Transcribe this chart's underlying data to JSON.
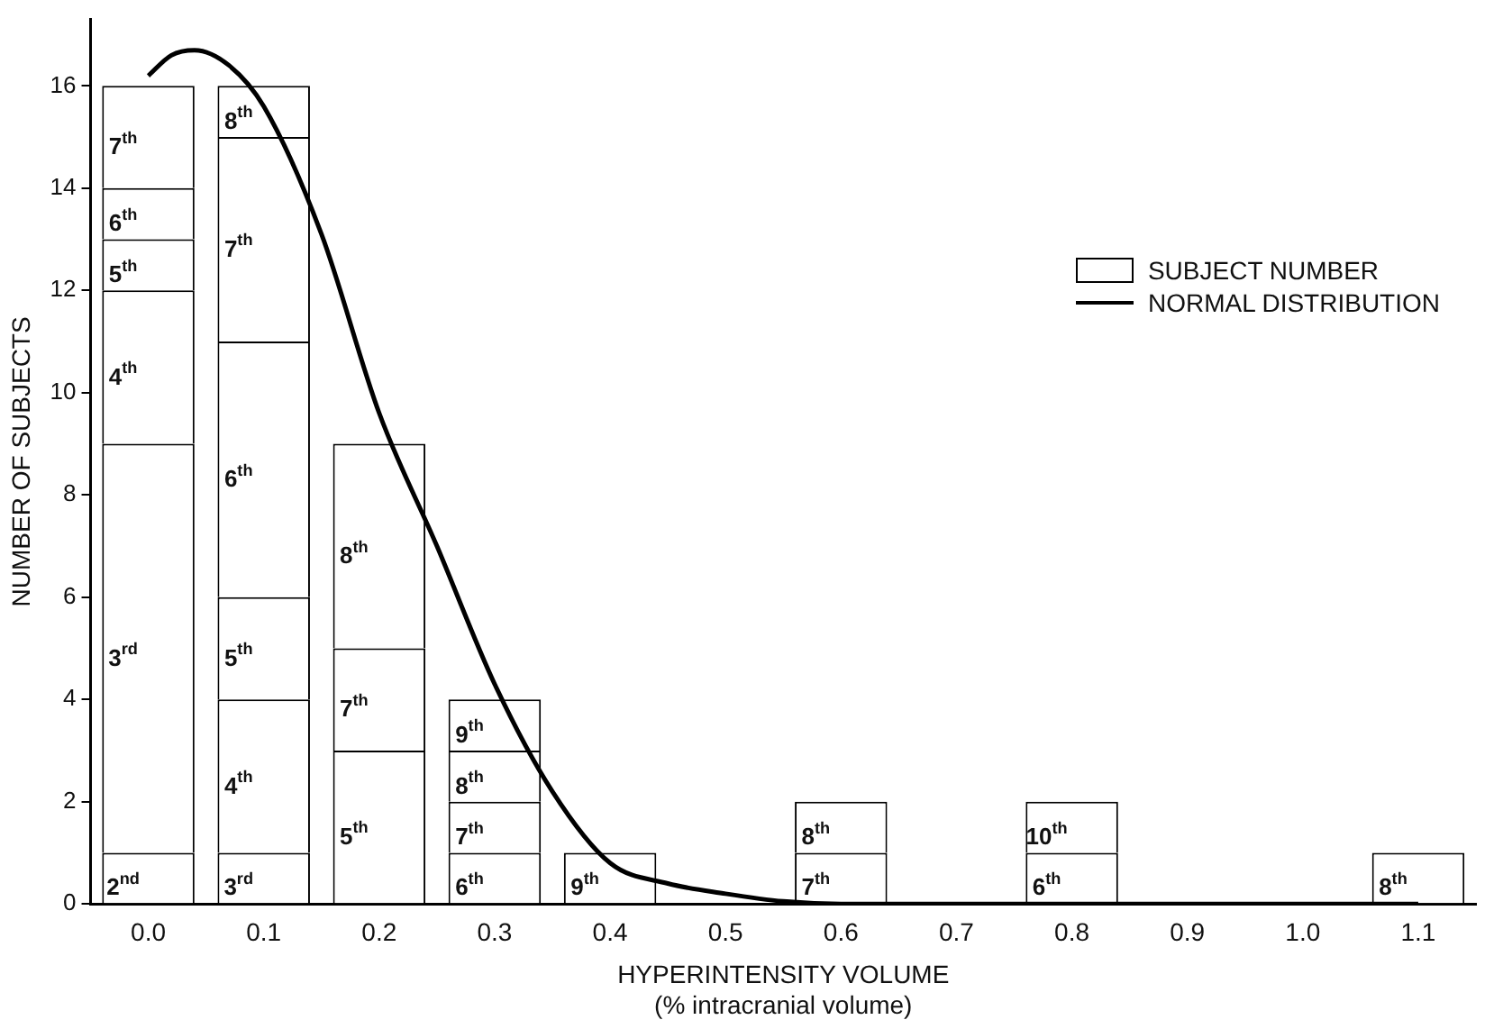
{
  "chart_data": {
    "type": "bar",
    "stacked": true,
    "xlabel": "HYPERINTENSITY VOLUME\n(% intracranial volume)",
    "ylabel": "NUMBER OF SUBJECTS",
    "x": [
      0,
      0.1,
      0.2,
      0.3,
      0.4,
      0.6,
      0.8,
      1.1
    ],
    "series": [
      {
        "name": "2$^{nd}$",
        "color": "#ffffff",
        "values": [
          1,
          null,
          null,
          null,
          null,
          null,
          null,
          null
        ]
      },
      {
        "name": "3$^{rd}$",
        "color": "#ffffff",
        "values": [
          8,
          1,
          null,
          null,
          null,
          null,
          null,
          null
        ]
      },
      {
        "name": "4$^{th}$",
        "color": "#ffffff",
        "values": [
          3,
          3,
          null,
          null,
          null,
          null,
          null,
          null
        ]
      },
      {
        "name": "5$^{th}$",
        "color": "#ffffff",
        "values": [
          1,
          2,
          3,
          null,
          null,
          null,
          null,
          null
        ]
      },
      {
        "name": "6$^{th}$",
        "color": "#ffffff",
        "values": [
          1,
          5,
          null,
          1,
          null,
          null,
          1,
          null
        ]
      },
      {
        "name": "7$^{th}$",
        "color": "#ffffff",
        "values": [
          2,
          4,
          2,
          1,
          null,
          1,
          null,
          null
        ]
      },
      {
        "name": "8$^{th}$",
        "color": "#ffffff",
        "values": [
          null,
          1,
          4,
          1,
          null,
          1,
          null,
          1
        ]
      },
      {
        "name": "9$^{th}$",
        "color": "#ffffff",
        "values": [
          null,
          null,
          null,
          1,
          1,
          null,
          null,
          null
        ]
      },
      {
        "name": "10$^{th}$",
        "color": "#ffffff",
        "values": [
          null,
          null,
          null,
          null,
          null,
          null,
          1,
          null
        ]
      },
      {
        "name": "NORMAL DISTRIBUTION",
        "type": "line",
        "color": "#000000",
        "x": [
          0,
          0.02,
          0.04,
          0.07,
          0.1,
          0.15,
          0.2,
          0.25,
          0.3,
          0.35,
          0.4,
          0.45,
          0.5,
          0.55,
          0.6,
          0.8,
          1.1
        ],
        "values": [
          16.2,
          16.6,
          16.7,
          16.4,
          15.6,
          13.1,
          9.6,
          7.0,
          4.3,
          2.2,
          0.8,
          0.4,
          0.2,
          0.05,
          0,
          0,
          0
        ]
      }
    ],
    "xlim": [
      -0.05,
      1.15
    ],
    "xticks": [
      {
        "value": 0,
        "label": "0.0"
      },
      0.1,
      0.2,
      0.3,
      0.4,
      0.5,
      0.6,
      0.7,
      0.8,
      0.9,
      {
        "value": 1,
        "label": "1.0"
      },
      1.1
    ],
    "ylim": [
      0,
      17.3
    ],
    "yticks": [
      0,
      2,
      4,
      6,
      8,
      10,
      12,
      14,
      16
    ],
    "grid": false,
    "legend": "right",
    "marker": "none",
    "line_style": "solid",
    "annotations": [
      "SUBJECT NUMBER"
    ]
  }
}
